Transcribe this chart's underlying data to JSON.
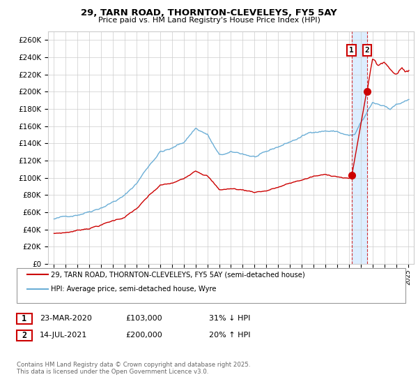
{
  "title": "29, TARN ROAD, THORNTON-CLEVELEYS, FY5 5AY",
  "subtitle": "Price paid vs. HM Land Registry's House Price Index (HPI)",
  "ylabel_ticks": [
    0,
    20000,
    40000,
    60000,
    80000,
    100000,
    120000,
    140000,
    160000,
    180000,
    200000,
    220000,
    240000,
    260000
  ],
  "ylim": [
    0,
    270000
  ],
  "xlim": [
    1994.5,
    2025.5
  ],
  "hpi_color": "#6baed6",
  "price_color": "#cc0000",
  "grid_color": "#cccccc",
  "background_color": "#ffffff",
  "vband_color": "#ddeeff",
  "marker1_date": "23-MAR-2020",
  "marker1_price": 103000,
  "marker1_pct": "31% ↓ HPI",
  "marker1_x": 2020.22,
  "marker2_date": "14-JUL-2021",
  "marker2_price": 200000,
  "marker2_pct": "20% ↑ HPI",
  "marker2_x": 2021.54,
  "legend_line1": "29, TARN ROAD, THORNTON-CLEVELEYS, FY5 5AY (semi-detached house)",
  "legend_line2": "HPI: Average price, semi-detached house, Wyre",
  "copyright": "Contains HM Land Registry data © Crown copyright and database right 2025.\nThis data is licensed under the Open Government Licence v3.0."
}
